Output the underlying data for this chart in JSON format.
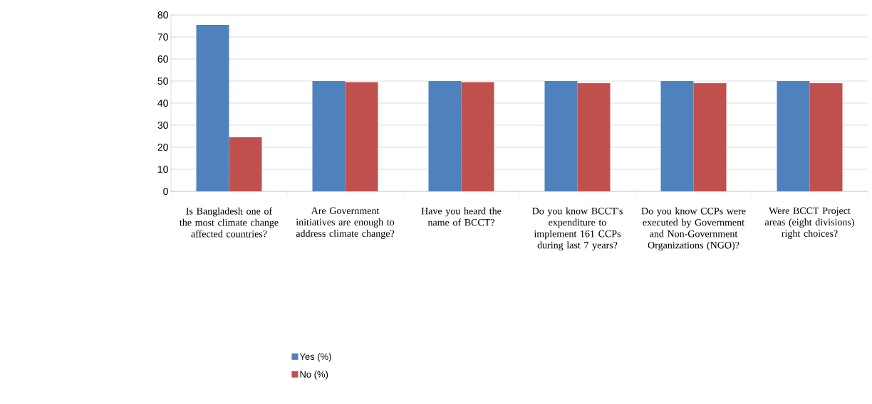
{
  "chart_data": {
    "type": "bar",
    "categories": [
      "Is Bangladesh one of the most climate change affected countries?",
      "Are Government initiatives are enough to address climate change?",
      "Have you heard the name of BCCT?",
      "Do you know BCCT's expenditure to implement 161 CCPs during last 7 years?",
      "Do you know CCPs were executed by Government and Non-Government Organizations (NGO)?",
      "Were BCCT Project areas (eight divisions) right choices?"
    ],
    "series": [
      {
        "name": "Yes (%)",
        "color": "#4f81bd",
        "values": [
          75.5,
          50,
          50,
          50,
          50,
          50
        ]
      },
      {
        "name": "No (%)",
        "color": "#c0504d",
        "values": [
          24.5,
          49.5,
          49.5,
          49,
          49,
          49
        ]
      }
    ],
    "ylim": [
      0,
      80
    ],
    "yticks": [
      0,
      10,
      20,
      30,
      40,
      50,
      60,
      70,
      80
    ],
    "grid": "y",
    "legend": "bottom"
  }
}
